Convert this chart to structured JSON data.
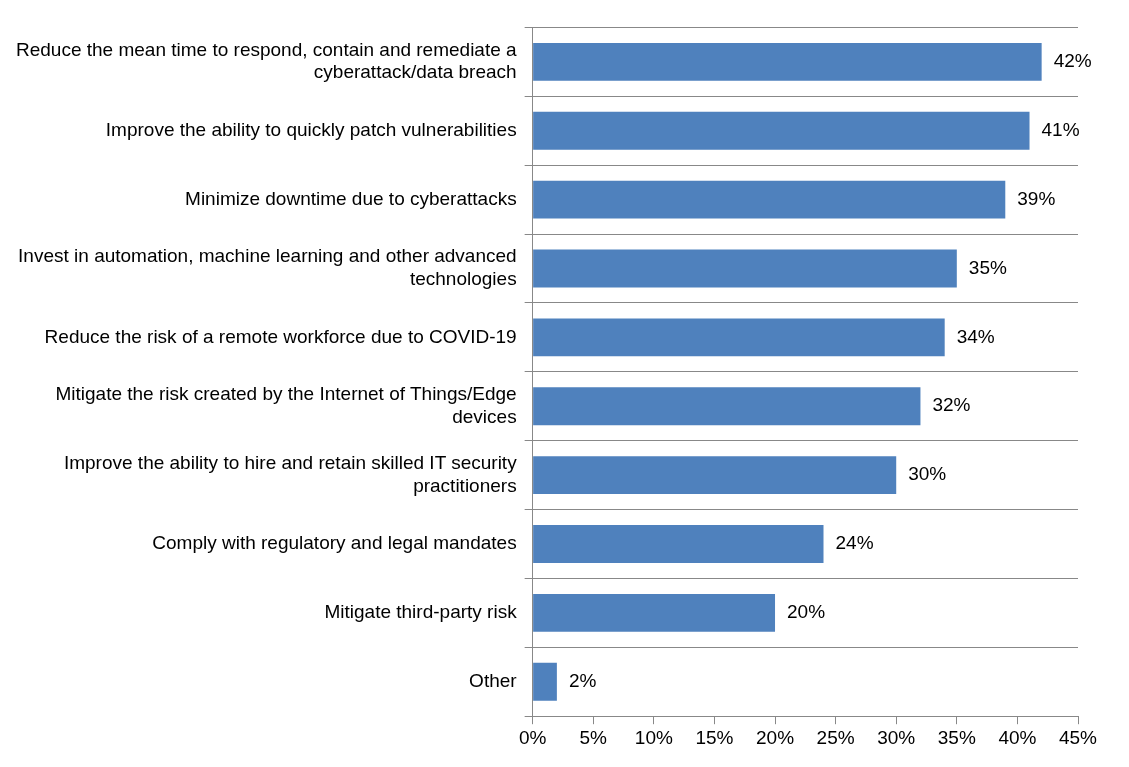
{
  "chart_data": {
    "type": "bar",
    "orientation": "horizontal",
    "categories": [
      "Reduce the mean time to respond, contain and remediate a cyberattack/data breach",
      "Improve the ability to quickly patch vulnerabilities",
      "Minimize downtime due to cyberattacks",
      "Invest in automation, machine learning and other advanced technologies",
      "Reduce the risk of a remote workforce due to COVID-19",
      "Mitigate the risk created by the Internet of Things/Edge devices",
      "Improve the ability to hire and retain skilled IT security practitioners",
      "Comply with regulatory and legal mandates",
      "Mitigate third-party risk",
      "Other"
    ],
    "values": [
      42,
      41,
      39,
      35,
      34,
      32,
      30,
      24,
      20,
      2
    ],
    "value_labels": [
      "42%",
      "41%",
      "39%",
      "35%",
      "34%",
      "32%",
      "30%",
      "24%",
      "20%",
      "2%"
    ],
    "color": "#4f81bd",
    "xlim": [
      0,
      45
    ],
    "xticks": [
      {
        "value": 0,
        "label": "0%"
      },
      {
        "value": 5,
        "label": "5%"
      },
      {
        "value": 10,
        "label": "10%"
      },
      {
        "value": 15,
        "label": "15%"
      },
      {
        "value": 20,
        "label": "20%"
      },
      {
        "value": 25,
        "label": "25%"
      },
      {
        "value": 30,
        "label": "30%"
      },
      {
        "value": 35,
        "label": "35%"
      },
      {
        "value": 40,
        "label": "40%"
      },
      {
        "value": 45,
        "label": "45%"
      }
    ],
    "grid": "y",
    "legend": false
  }
}
